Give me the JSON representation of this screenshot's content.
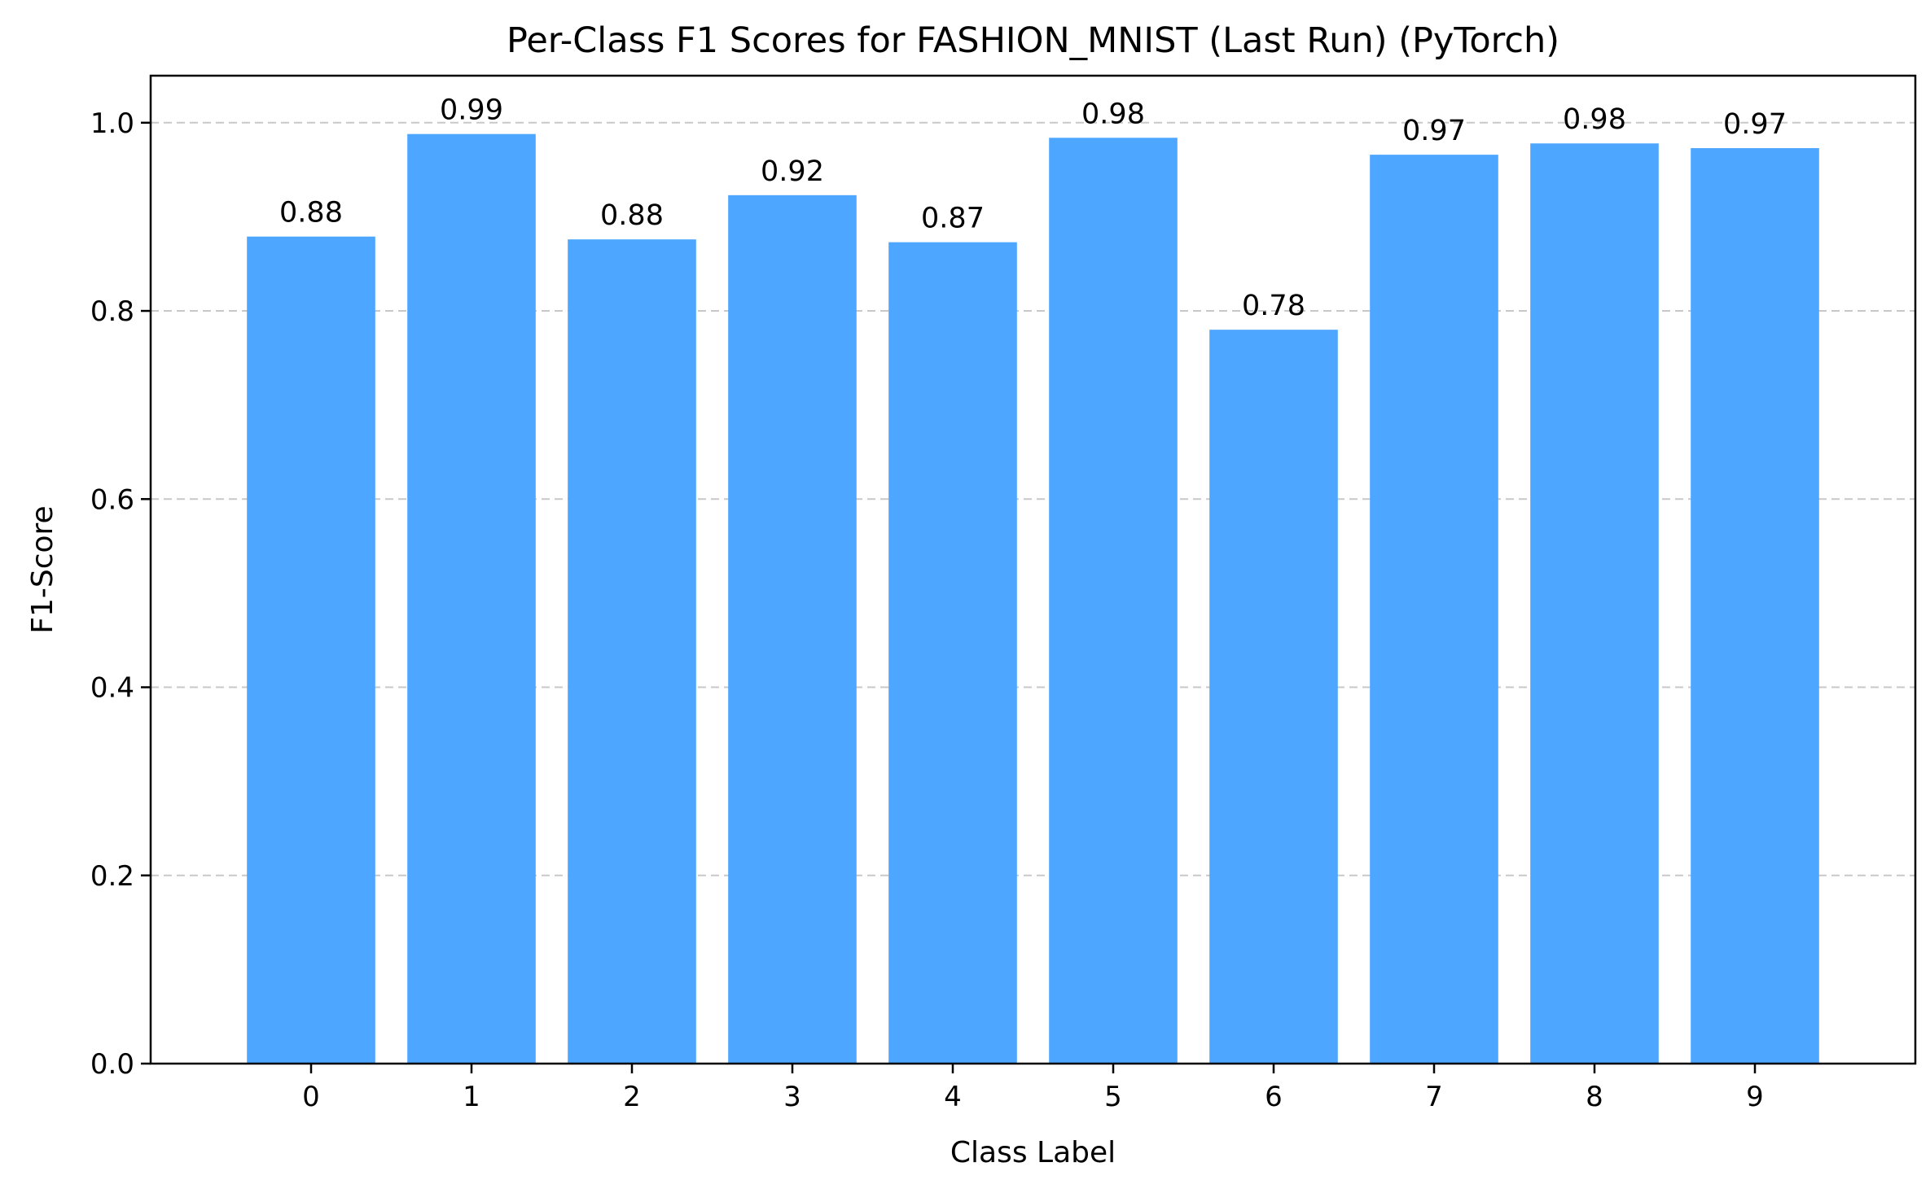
{
  "chart_data": {
    "type": "bar",
    "title": "Per-Class F1 Scores for FASHION_MNIST (Last Run) (PyTorch)",
    "xlabel": "Class Label",
    "ylabel": "F1-Score",
    "categories": [
      "0",
      "1",
      "2",
      "3",
      "4",
      "5",
      "6",
      "7",
      "8",
      "9"
    ],
    "values": [
      0.879,
      0.988,
      0.876,
      0.923,
      0.873,
      0.984,
      0.78,
      0.966,
      0.978,
      0.973
    ],
    "data_labels": [
      "0.88",
      "0.99",
      "0.88",
      "0.92",
      "0.87",
      "0.98",
      "0.78",
      "0.97",
      "0.98",
      "0.97"
    ],
    "ylim": [
      0,
      1.05
    ],
    "yticks": [
      0.0,
      0.2,
      0.4,
      0.6,
      0.8,
      1.0
    ],
    "ytick_labels": [
      "0.0",
      "0.2",
      "0.4",
      "0.6",
      "0.8",
      "1.0"
    ],
    "grid": "y-dashed",
    "legend": "none",
    "bar_color": "#4da6ff"
  }
}
